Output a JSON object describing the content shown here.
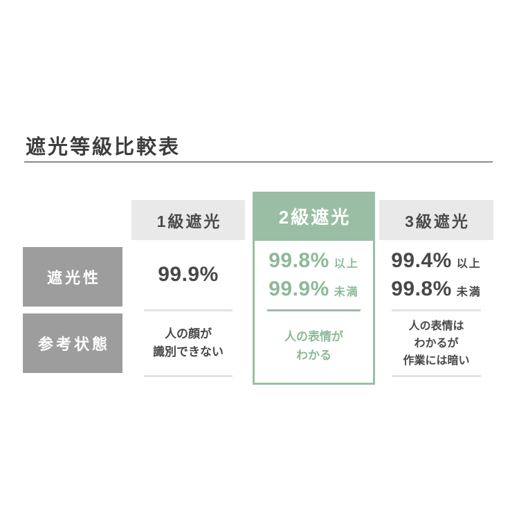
{
  "page": {
    "title": "遮光等級比較表"
  },
  "colors": {
    "accent_green": "#9abea3",
    "green_text": "#8cb996",
    "column_header_bg": "#e9e9e9",
    "row_header_bg": "#9d9d9d",
    "text_dark": "#474747",
    "divider_gray": "#e3e3e3",
    "title_underline": "#8a8a8a"
  },
  "table": {
    "row_headers": [
      {
        "label": "遮光性"
      },
      {
        "label": "参考状態"
      }
    ],
    "columns": [
      {
        "grade": "1級遮光",
        "highlighted": false,
        "shading": [
          {
            "value": "99.9%",
            "suffix": ""
          }
        ],
        "state": [
          "人の顔が",
          "識別できない"
        ]
      },
      {
        "grade": "2級遮光",
        "highlighted": true,
        "shading": [
          {
            "value": "99.8%",
            "suffix": "以上"
          },
          {
            "value": "99.9%",
            "suffix": "未満"
          }
        ],
        "state": [
          "人の表情が",
          "わかる"
        ]
      },
      {
        "grade": "3級遮光",
        "highlighted": false,
        "shading": [
          {
            "value": "99.4%",
            "suffix": "以上"
          },
          {
            "value": "99.8%",
            "suffix": "未満"
          }
        ],
        "state": [
          "人の表情は",
          "わかるが",
          "作業には暗い"
        ]
      }
    ]
  },
  "chart_data": {
    "type": "table",
    "title": "遮光等級比較表",
    "row_labels": [
      "遮光性",
      "参考状態"
    ],
    "column_labels": [
      "1級遮光",
      "2級遮光",
      "3級遮光"
    ],
    "cells": [
      [
        "99.9%",
        "99.8% 以上 99.9% 未満",
        "99.4% 以上 99.8% 未満"
      ],
      [
        "人の顔が識別できない",
        "人の表情がわかる",
        "人の表情はわかるが作業には暗い"
      ]
    ]
  }
}
